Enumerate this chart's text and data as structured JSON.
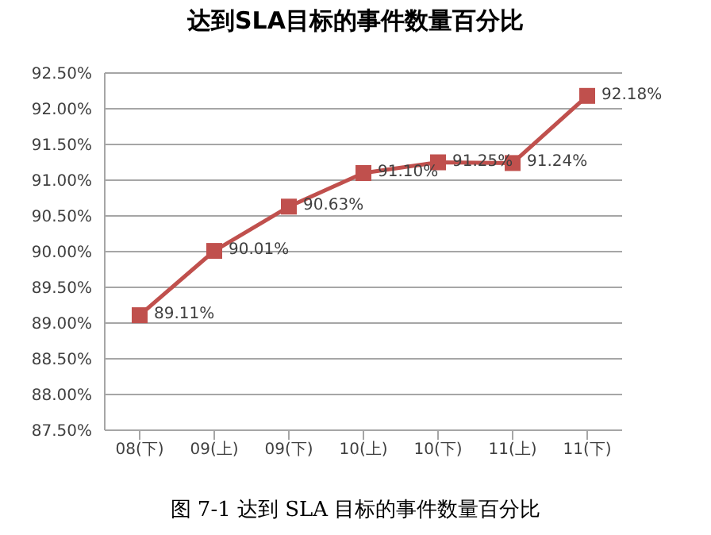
{
  "chart_data": {
    "type": "line",
    "title": "达到SLA目标的事件数量百分比",
    "categories": [
      "08(下)",
      "09(上)",
      "09(下)",
      "10(上)",
      "10(下)",
      "11(上)",
      "11(下)"
    ],
    "series": [
      {
        "color": "#c0504d",
        "values": [
          89.11,
          90.01,
          90.63,
          91.1,
          91.25,
          91.24,
          92.18
        ],
        "value_labels": [
          "89.11%",
          "90.01%",
          "90.63%",
          "91.10%",
          "91.25%",
          "91.24%",
          "92.18%"
        ]
      }
    ],
    "ylim": [
      87.5,
      92.5
    ],
    "yticks": [
      {
        "value": 87.5,
        "label": "87.50%"
      },
      {
        "value": 88,
        "label": "88.00%"
      },
      {
        "value": 88.5,
        "label": "88.50%"
      },
      {
        "value": 89,
        "label": "89.00%"
      },
      {
        "value": 89.5,
        "label": "89.50%"
      },
      {
        "value": 90,
        "label": "90.00%"
      },
      {
        "value": 90.5,
        "label": "90.50%"
      },
      {
        "value": 91,
        "label": "91.00%"
      },
      {
        "value": 91.5,
        "label": "91.50%"
      },
      {
        "value": 92,
        "label": "92.00%"
      },
      {
        "value": 92.5,
        "label": "92.50%"
      }
    ],
    "grid": "y",
    "marker": "square",
    "line_style": "solid",
    "annotations": [
      "图 7-1 达到 SLA 目标的事件数量百分比"
    ]
  }
}
